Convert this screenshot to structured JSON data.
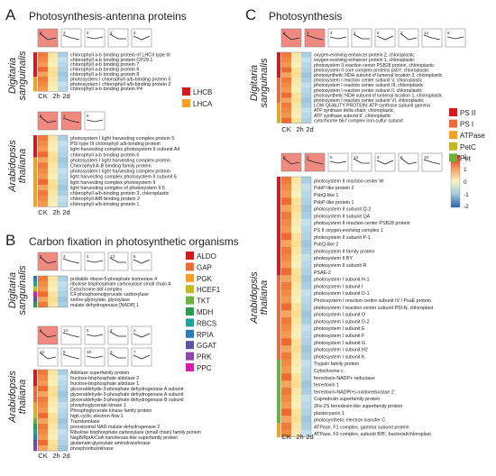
{
  "panels": {
    "A": {
      "letter": "A",
      "title": "Photosynthesis-antenna proteins",
      "dig_label": [
        "Digitaria",
        "sanguinalis"
      ],
      "ara_label": [
        "Arabidopsis",
        "thaliana"
      ],
      "legend": [
        {
          "label": "LHCB",
          "color": "#d7191c"
        },
        {
          "label": "LHCA",
          "color": "#f5a023"
        }
      ],
      "dig_thumbs": [
        "8",
        "3",
        "5",
        "2",
        "4"
      ],
      "ara_thumbs": [
        "8",
        "1",
        "6"
      ],
      "dig_genes": [
        "chlorophyll a-b binding protein of LHCII type III",
        "chlorophyll a-b binding protein CP29.1",
        "chlorophyll a-b binding protein 7",
        "chlorophyll a-b binding protein 6",
        "chlorophyll a-b binding protein 8",
        "photosystem I chlorophyll a/b-binding protein 5",
        "photosystem I chlorophyll a/b-binding protein 2",
        "chlorophyll a-b binding protein P4"
      ],
      "ara_genes": [
        "photosystem I light harvesting complex protein 5",
        "PSI type III chlorophyll a/b-binding protein",
        "light-harvesting complex photosystem II subunit A4",
        "chlorophyll a-b binding protein 6",
        "photosystem I light harvesting complex protein",
        "Chlorophyll A-B binding family protein",
        "photosystem I light harvesting complex protein",
        "light harvesting complex photosystem II subunit 6",
        "light harvesting complex photosystem II",
        "light harvesting complex of photosystem II 5",
        "chlorophyll a/b-binding protein 3, chloroplastic",
        "chlorophyll A/B binding protein 2",
        "chlorophyll a/b-binding protein 1"
      ],
      "cols": [
        "CK",
        "2h",
        "2d"
      ]
    },
    "B": {
      "letter": "B",
      "title": "Carbon fixation in photosynthetic organisms",
      "dig_label": [
        "Digitaria",
        "sanguinalis"
      ],
      "ara_label": [
        "Arabidopsis",
        "thaliana"
      ],
      "legend": [
        {
          "label": "ALDO",
          "color": "#d7191c"
        },
        {
          "label": "GAP",
          "color": "#ef6a32"
        },
        {
          "label": "PGK",
          "color": "#f5a023"
        },
        {
          "label": "HCEF1",
          "color": "#c8b820"
        },
        {
          "label": "TKT",
          "color": "#6ab23c"
        },
        {
          "label": "MDH",
          "color": "#2c9b4e"
        },
        {
          "label": "RBCS",
          "color": "#1fa39a"
        },
        {
          "label": "RPIA",
          "color": "#2b7bb9"
        },
        {
          "label": "GGAT",
          "color": "#5b52a3"
        },
        {
          "label": "PRK",
          "color": "#8e44ad"
        },
        {
          "label": "PPC",
          "color": "#d61ca8"
        }
      ],
      "dig_thumbs": [
        "8",
        "3",
        "4",
        "13",
        "6"
      ],
      "ara_thumbs": [
        "8",
        "14",
        "5",
        "4",
        "2",
        "13",
        "9",
        "10",
        "3",
        "7"
      ],
      "dig_genes": [
        "probable ribose-5-phosphate isomerase 4",
        "ribulose bisphosphate carboxylase small chain A",
        "Cytochrome b6f complex",
        "C4 phosphoenolpyruvate carboxylase",
        "serine-glyoxylate, glyoxylase",
        "malate dehydrogenase [NADP] 1"
      ],
      "ara_genes": [
        "Aldolase superfamily protein",
        "fructose-bisphosphate aldolase 2",
        "fructose-bisphosphate aldolase 1",
        "glyceraldehyde-3-phosphate dehydrogenase A subunit",
        "glyceraldehyde-3-phosphate dehydrogenase A subunit",
        "glyceraldehyde-3-phosphate dehydrogenase B subunit",
        "phosphoglycerate kinase 1",
        "Phosphoglycerate kinase family protein",
        "high cyclic electron flow 1",
        "Transketolase",
        "peroxisomal NAD-malate dehydrogenase 2",
        "Ribulose bisphosphate carboxylase (small chain) family protein",
        "NagB/RpiA/CoA transferase-like superfamily protein",
        "glutamate:glyoxylate aminotransferase",
        "phosphoribulokinase"
      ],
      "cols": [
        "CK",
        "2h",
        "2d"
      ]
    },
    "C": {
      "letter": "C",
      "title": "Photosynthesis",
      "dig_label": [
        "Digitaria",
        "sanguinalis"
      ],
      "ara_label": [
        "Arabidopsis",
        "thaliana"
      ],
      "legend": [
        {
          "label": "PS II",
          "color": "#d7191c"
        },
        {
          "label": "PS I",
          "color": "#ef6a32"
        },
        {
          "label": "ATPase",
          "color": "#f5a023"
        },
        {
          "label": "PetC",
          "color": "#c8b820"
        },
        {
          "label": "Pet",
          "color": "#6ab23c"
        }
      ],
      "scale_ticks": [
        "2",
        "1",
        "0",
        "-1",
        "-2"
      ],
      "dig_thumbs": [
        "8",
        "3",
        "4",
        "2",
        "6",
        "7",
        "14",
        "9"
      ],
      "ara_thumbs": [
        "8",
        "3",
        "5",
        "14",
        "4",
        "6",
        "10"
      ],
      "dig_genes": [
        "oxygen-evolving enhancer protein 2, chloroplastic",
        "oxygen-evolving enhancer protein 1, chloroplastic",
        "photosystem II reaction center PSB28 protein, chloroplastic",
        "photosystem II core complex proteins psbY, chloroplastic",
        "photosynthetic NDH subunit of lumenal location 3, chloroplastic",
        "photosystem I reaction center subunit V, chloroplastic",
        "photosystem I reaction center subunit III, chloroplastic",
        "photosystem I reaction center subunit II, chloroplastic",
        "photosynthetic NDH subunit of lumenal location 1, chloroplastic",
        "photosystem I reaction center subunit VI, chloroplastic",
        "LOW QUALITY PROTEIN: ATP synthase subunit gamma",
        "ATP synthase delta chain, chloroplastic",
        "ATP synthase subunit b', chloroplastic",
        "cytochrome b6-f complex iron-sulfur subunit"
      ],
      "ara_genes": [
        "photosystem II reaction center W",
        "PsbP-like protein 2",
        "PsbQ-like 1",
        "PsbP-like protein 1",
        "photosystem II subunit Q-2",
        "photosystem II subunit QA",
        "photosystem II reaction center PSB28 protein",
        "PS II oxygen-evolving complex 1",
        "photosystem II subunit P-1",
        "PsbQ-like 2",
        "photosystem II family protein",
        "photosystem II BY",
        "photosystem II subunit R",
        "PSAE-2",
        "photosystem I subunit H-1",
        "photosystem I subunit I",
        "photosystem I subunit D-1",
        "Photosystem I reaction centre subunit IV / PsaE protein",
        "photosystem I reaction center subunit PSI-N, chloroplast",
        "photosystem I subunit O",
        "photosystem I subunit D-2",
        "photosystem I subunit E",
        "photosystem I subunit F",
        "photosystem I subunit G",
        "photosystem I subunit H2",
        "photosystem I subunit K",
        "Trypsin family protein",
        "Cytochrome c",
        "ferredoxin-NADP+ reductase",
        "ferredoxin 1",
        "ferredoxin-NADP(+)-oxidoreductase 2",
        "Cupredoxin superfamily protein",
        "2Fe-2S ferredoxin-like superfamily protein",
        "plastocyanin 1",
        "photosynthetic electron transfer C",
        "ATPase, F1 complex, gamma subunit protein",
        "ATPase, F0 complex, subunit B/B', bacterial/chloroplast"
      ],
      "cols": [
        "CK",
        "2h",
        "2d"
      ]
    }
  }
}
